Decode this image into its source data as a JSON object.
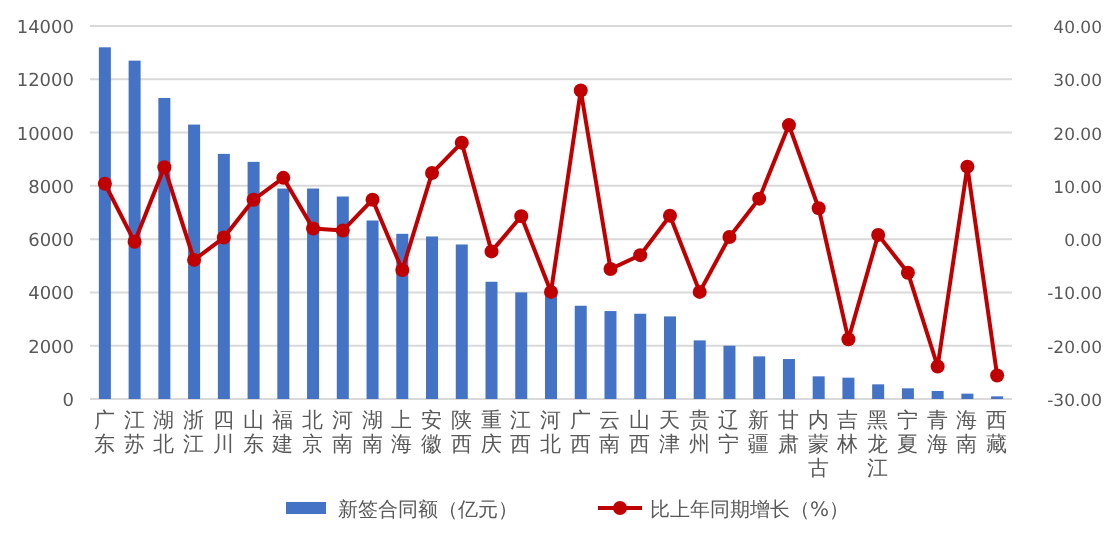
{
  "chart_data": {
    "type": "bar",
    "categories": [
      "广东",
      "江苏",
      "湖北",
      "浙江",
      "四川",
      "山东",
      "福建",
      "北京",
      "河南",
      "湖南",
      "上海",
      "安徽",
      "陕西",
      "重庆",
      "江西",
      "河北",
      "广西",
      "云南",
      "山西",
      "天津",
      "贵州",
      "辽宁",
      "新疆",
      "甘肃",
      "内蒙古",
      "吉林",
      "黑龙江",
      "宁夏",
      "青海",
      "海南",
      "西藏"
    ],
    "series": [
      {
        "name": "新签合同额（亿元）",
        "color": "#4472c4",
        "values": [
          13200,
          12700,
          11300,
          10300,
          9200,
          8900,
          7900,
          7900,
          7600,
          6700,
          6200,
          6100,
          5800,
          4400,
          4000,
          3900,
          3500,
          3300,
          3200,
          3100,
          2200,
          2000,
          1600,
          1500,
          850,
          800,
          550,
          400,
          300,
          200,
          100
        ]
      },
      {
        "name": "比上年同期增长（%）",
        "type": "line",
        "axis": "y2",
        "color": "#c00000",
        "marker": "circle",
        "values": [
          10.4,
          -0.5,
          13.5,
          -3.9,
          0.3,
          7.4,
          11.5,
          2.0,
          1.6,
          7.4,
          -5.8,
          12.4,
          18.1,
          -2.3,
          4.3,
          -9.9,
          27.9,
          -5.6,
          -3.0,
          4.4,
          -9.9,
          0.4,
          7.6,
          21.4,
          5.8,
          -18.8,
          0.8,
          -6.3,
          -23.9,
          13.6,
          -25.6
        ]
      }
    ],
    "ylim": [
      0,
      14000
    ],
    "yticks": [
      0,
      2000,
      4000,
      6000,
      8000,
      10000,
      12000,
      14000
    ],
    "y2lim": [
      -30,
      40
    ],
    "y2ticks": [
      {
        "value": -30,
        "label": "-30.00"
      },
      {
        "value": -20,
        "label": "-20.00"
      },
      {
        "value": -10,
        "label": "-10.00"
      },
      {
        "value": 0,
        "label": "0.00"
      },
      {
        "value": 10,
        "label": "10.00"
      },
      {
        "value": 20,
        "label": "20.00"
      },
      {
        "value": 30,
        "label": "30.00"
      },
      {
        "value": 40,
        "label": "40.00"
      }
    ],
    "grid": "y",
    "legend": "bottom"
  }
}
